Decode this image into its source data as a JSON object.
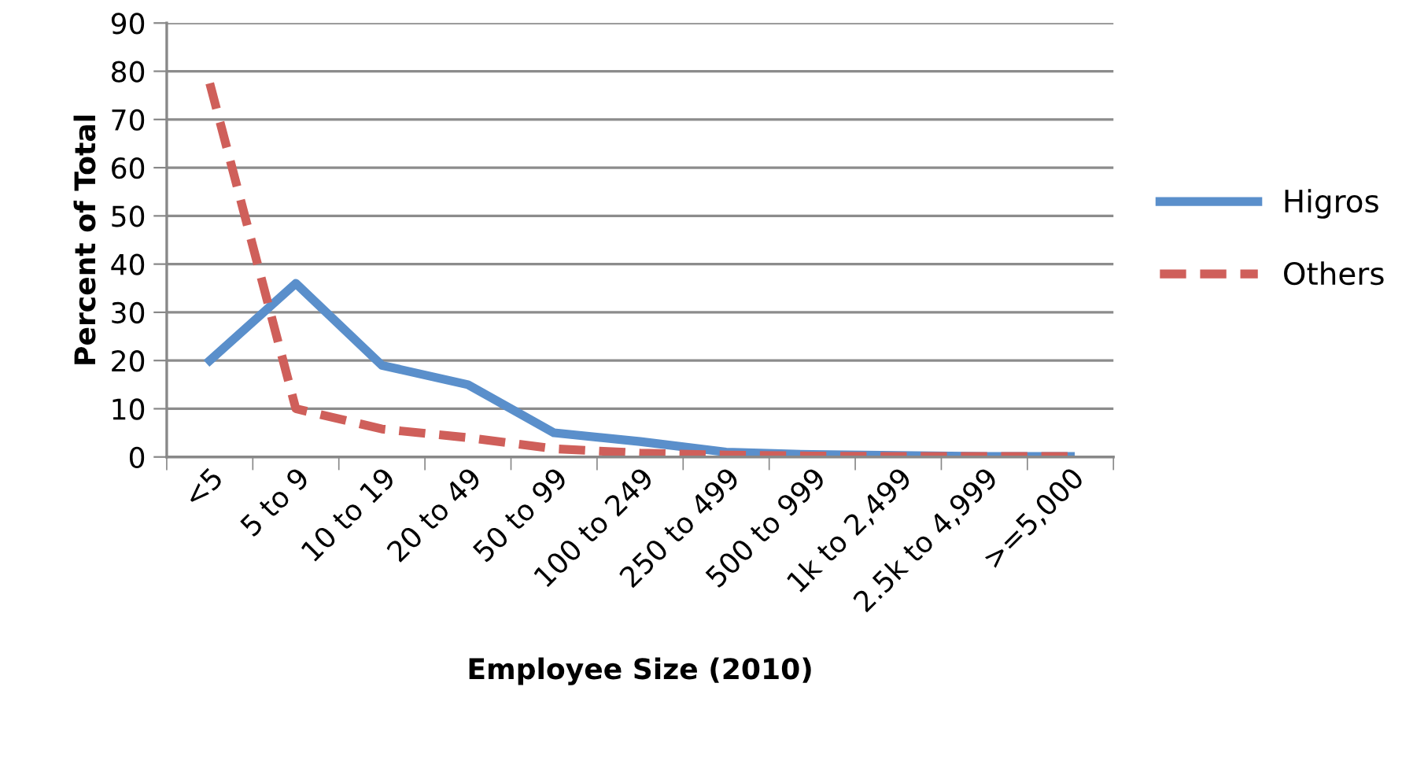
{
  "chart_data": {
    "type": "line",
    "xlabel": "Employee Size (2010)",
    "ylabel": "Percent of Total",
    "categories": [
      "<5",
      "5 to 9",
      "10 to 19",
      "20 to 49",
      "50 to 99",
      "100 to 249",
      "250 to 499",
      "500 to 999",
      "1k to 2,499",
      "2.5k to 4,999",
      ">=5,000"
    ],
    "series": [
      {
        "name": "Higros",
        "color": "#5a8fcb",
        "line_style": "solid",
        "values": [
          20,
          36,
          19,
          15,
          5,
          3.2,
          1,
          0.5,
          0.3,
          0.1,
          0.1
        ]
      },
      {
        "name": "Others",
        "color": "#cf5f5a",
        "line_style": "dashed",
        "values": [
          77.5,
          10,
          5.8,
          4,
          1.7,
          0.8,
          0.4,
          0.2,
          0.1,
          0.1,
          0.1
        ]
      }
    ],
    "ylim": [
      0,
      90
    ],
    "yticks": [
      0,
      10,
      20,
      30,
      40,
      50,
      60,
      70,
      80,
      90
    ],
    "grid": "y",
    "legend": "right",
    "marker": "none"
  }
}
